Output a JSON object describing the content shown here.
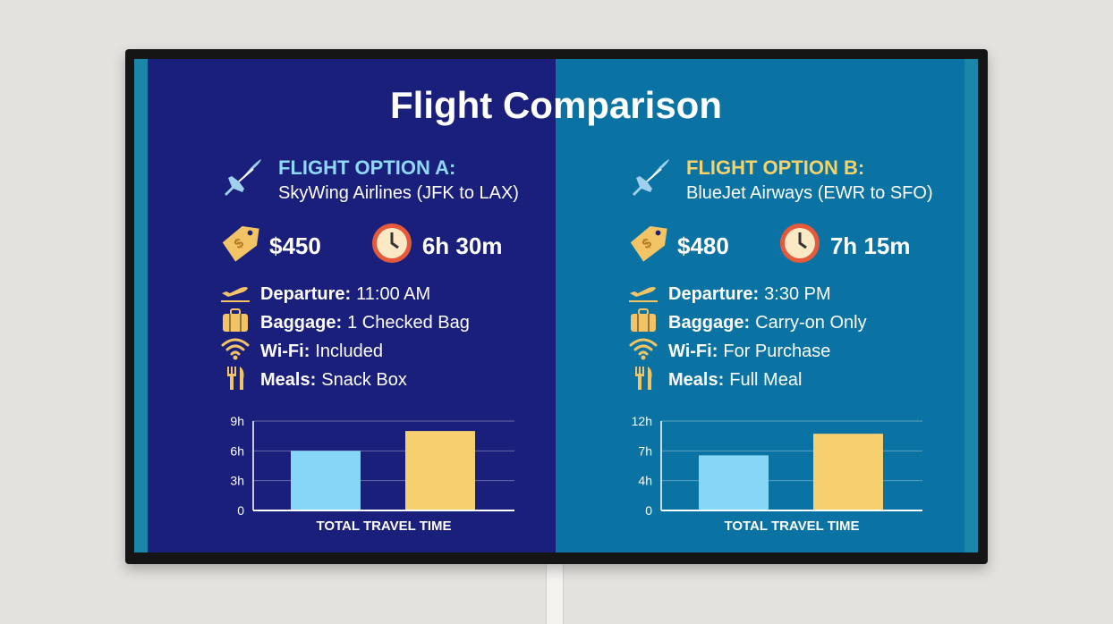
{
  "title": "Flight Comparison",
  "colors": {
    "panel_a": "#1a1f7c",
    "panel_b": "#0a73a3",
    "bar_a": "#86d6f7",
    "bar_b": "#f6cf6f",
    "heading_a": "#8fd8f8",
    "heading_b": "#f6d36a",
    "icon": "#f3c465"
  },
  "options": [
    {
      "heading": "FLIGHT OPTION A:",
      "airline": "SkyWing Airlines (JFK to LAX)",
      "price": "$450",
      "duration": "6h 30m",
      "details": [
        {
          "icon": "departure-icon",
          "label": "Departure:",
          "value": "11:00 AM"
        },
        {
          "icon": "baggage-icon",
          "label": "Baggage:",
          "value": "1 Checked Bag"
        },
        {
          "icon": "wifi-icon",
          "label": "Wi-Fi:",
          "value": "Included"
        },
        {
          "icon": "meal-icon",
          "label": "Meals:",
          "value": "Snack Box"
        }
      ]
    },
    {
      "heading": "FLIGHT OPTION B:",
      "airline": "BlueJet Airways (EWR to SFO)",
      "price": "$480",
      "duration": "7h 15m",
      "details": [
        {
          "icon": "departure-icon",
          "label": "Departure:",
          "value": "3:30 PM"
        },
        {
          "icon": "baggage-icon",
          "label": "Baggage:",
          "value": "Carry-on Only"
        },
        {
          "icon": "wifi-icon",
          "label": "Wi-Fi:",
          "value": "For Purchase"
        },
        {
          "icon": "meal-icon",
          "label": "Meals:",
          "value": "Full Meal"
        }
      ]
    }
  ],
  "chart_data": [
    {
      "type": "bar",
      "xlabel": "TOTAL TRAVEL TIME",
      "ylim": [
        0,
        9
      ],
      "yticks": [
        "0",
        "3h",
        "6h",
        "9h"
      ],
      "grid": true,
      "values": [
        6,
        8
      ]
    },
    {
      "type": "bar",
      "xlabel": "TOTAL TRAVEL TIME",
      "ylim": [
        0,
        12
      ],
      "yticks": [
        "0",
        "4h",
        "7h",
        "12h"
      ],
      "grid": true,
      "values": [
        7.4,
        10.3
      ]
    }
  ]
}
